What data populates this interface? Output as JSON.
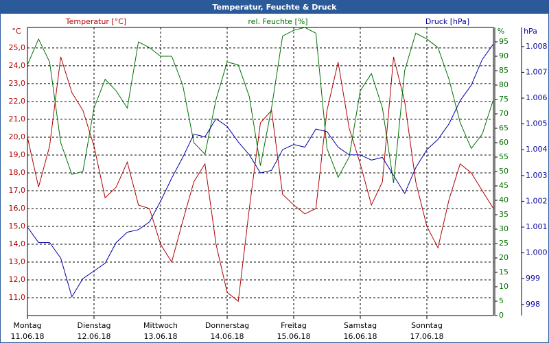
{
  "chart_data": {
    "type": "line",
    "title": "Temperatur, Feuchte & Druck",
    "x": [
      0,
      4,
      8,
      12,
      16,
      20,
      24,
      28,
      32,
      36,
      40,
      44,
      48,
      52,
      56,
      60,
      64,
      68,
      72,
      76,
      80,
      84,
      88,
      92,
      96,
      100,
      104,
      108,
      112,
      116,
      120,
      124,
      128,
      132,
      136,
      140,
      144,
      148,
      152,
      156,
      160,
      164,
      168
    ],
    "xlim": [
      0,
      168
    ],
    "xticks": [
      {
        "value": 0,
        "label": "Montag"
      },
      {
        "value": 24,
        "label": "Dienstag"
      },
      {
        "value": 48,
        "label": "Mittwoch"
      },
      {
        "value": 72,
        "label": "Donnerstag"
      },
      {
        "value": 96,
        "label": "Freitag"
      },
      {
        "value": 120,
        "label": "Samstag"
      },
      {
        "value": 144,
        "label": "Sonntag"
      }
    ],
    "xtick_dates": [
      "11.06.18",
      "12.06.18",
      "13.06.18",
      "14.06.18",
      "15.06.18",
      "16.06.18",
      "17.06.18"
    ],
    "ylabel": "°C",
    "y2label": "%",
    "y3label": "hPa",
    "ylim": [
      10,
      26.15
    ],
    "yticks": [
      {
        "value": 11,
        "label": "11,0"
      },
      {
        "value": 12,
        "label": "12,0"
      },
      {
        "value": 13,
        "label": "13,0"
      },
      {
        "value": 14,
        "label": "14,0"
      },
      {
        "value": 15,
        "label": "15,0"
      },
      {
        "value": 16,
        "label": "16,0"
      },
      {
        "value": 17,
        "label": "17,0"
      },
      {
        "value": 18,
        "label": "18,0"
      },
      {
        "value": 19,
        "label": "19,0"
      },
      {
        "value": 20,
        "label": "20,0"
      },
      {
        "value": 21,
        "label": "21,0"
      },
      {
        "value": 22,
        "label": "22,0"
      },
      {
        "value": 23,
        "label": "23,0"
      },
      {
        "value": 24,
        "label": "24,0"
      },
      {
        "value": 25,
        "label": "25,0"
      }
    ],
    "y2lim": [
      0,
      100
    ],
    "y2ticks": [
      0,
      5,
      10,
      15,
      20,
      25,
      30,
      35,
      40,
      45,
      50,
      55,
      60,
      65,
      70,
      75,
      80,
      85,
      90,
      95
    ],
    "y3lim": [
      997.57,
      1008.74
    ],
    "y3ticks": [
      998,
      999,
      {
        "value": 1000,
        "label": "1.000"
      },
      {
        "value": 1001,
        "label": "1.001"
      },
      {
        "value": 1002,
        "label": "1.002"
      },
      {
        "value": 1003,
        "label": "1.003"
      },
      {
        "value": 1004,
        "label": "1.004"
      },
      {
        "value": 1005,
        "label": "1.005"
      },
      {
        "value": 1006,
        "label": "1.006"
      },
      {
        "value": 1007,
        "label": "1.007"
      },
      {
        "value": 1008,
        "label": "1.008"
      }
    ],
    "grid": true,
    "series": [
      {
        "name": "Temperatur [°C]",
        "color": "#b00000",
        "axis": "y",
        "values": [
          20.0,
          17.2,
          19.5,
          24.5,
          22.5,
          21.5,
          19.5,
          16.6,
          17.2,
          18.6,
          16.2,
          16.0,
          14.0,
          13.0,
          15.3,
          17.5,
          18.5,
          14.0,
          11.3,
          10.8,
          16.0,
          20.8,
          21.5,
          16.8,
          16.2,
          15.7,
          16.0,
          21.5,
          24.2,
          20.5,
          18.5,
          16.2,
          17.5,
          24.5,
          22.0,
          17.5,
          15.0,
          13.8,
          16.5,
          18.5,
          18.0,
          17.0,
          16.0
        ]
      },
      {
        "name": "rel. Feuchte [%]",
        "color": "#007000",
        "axis": "y2",
        "values": [
          87,
          96,
          88,
          60,
          49,
          50,
          72,
          82,
          78,
          72,
          95,
          93,
          90,
          90,
          80,
          60,
          56,
          75,
          88,
          87,
          76,
          52,
          72,
          97,
          99,
          100,
          98,
          58,
          48,
          55,
          78,
          84,
          72,
          46,
          85,
          98,
          96,
          93,
          82,
          67,
          58,
          63,
          75
        ]
      },
      {
        "name": "Druck [hPa]",
        "color": "#0000a0",
        "axis": "y3",
        "values": [
          1001.0,
          1000.4,
          1000.4,
          999.8,
          998.3,
          999.0,
          999.3,
          999.6,
          1000.4,
          1000.8,
          1000.9,
          1001.2,
          1002.0,
          1002.9,
          1003.7,
          1004.6,
          1004.5,
          1005.2,
          1004.9,
          1004.3,
          1003.8,
          1003.1,
          1003.2,
          1004.0,
          1004.2,
          1004.1,
          1004.8,
          1004.7,
          1004.1,
          1003.8,
          1003.8,
          1003.6,
          1003.7,
          1003.0,
          1002.3,
          1003.3,
          1004.0,
          1004.4,
          1005.0,
          1005.9,
          1006.5,
          1007.5,
          1008.1
        ]
      }
    ]
  }
}
